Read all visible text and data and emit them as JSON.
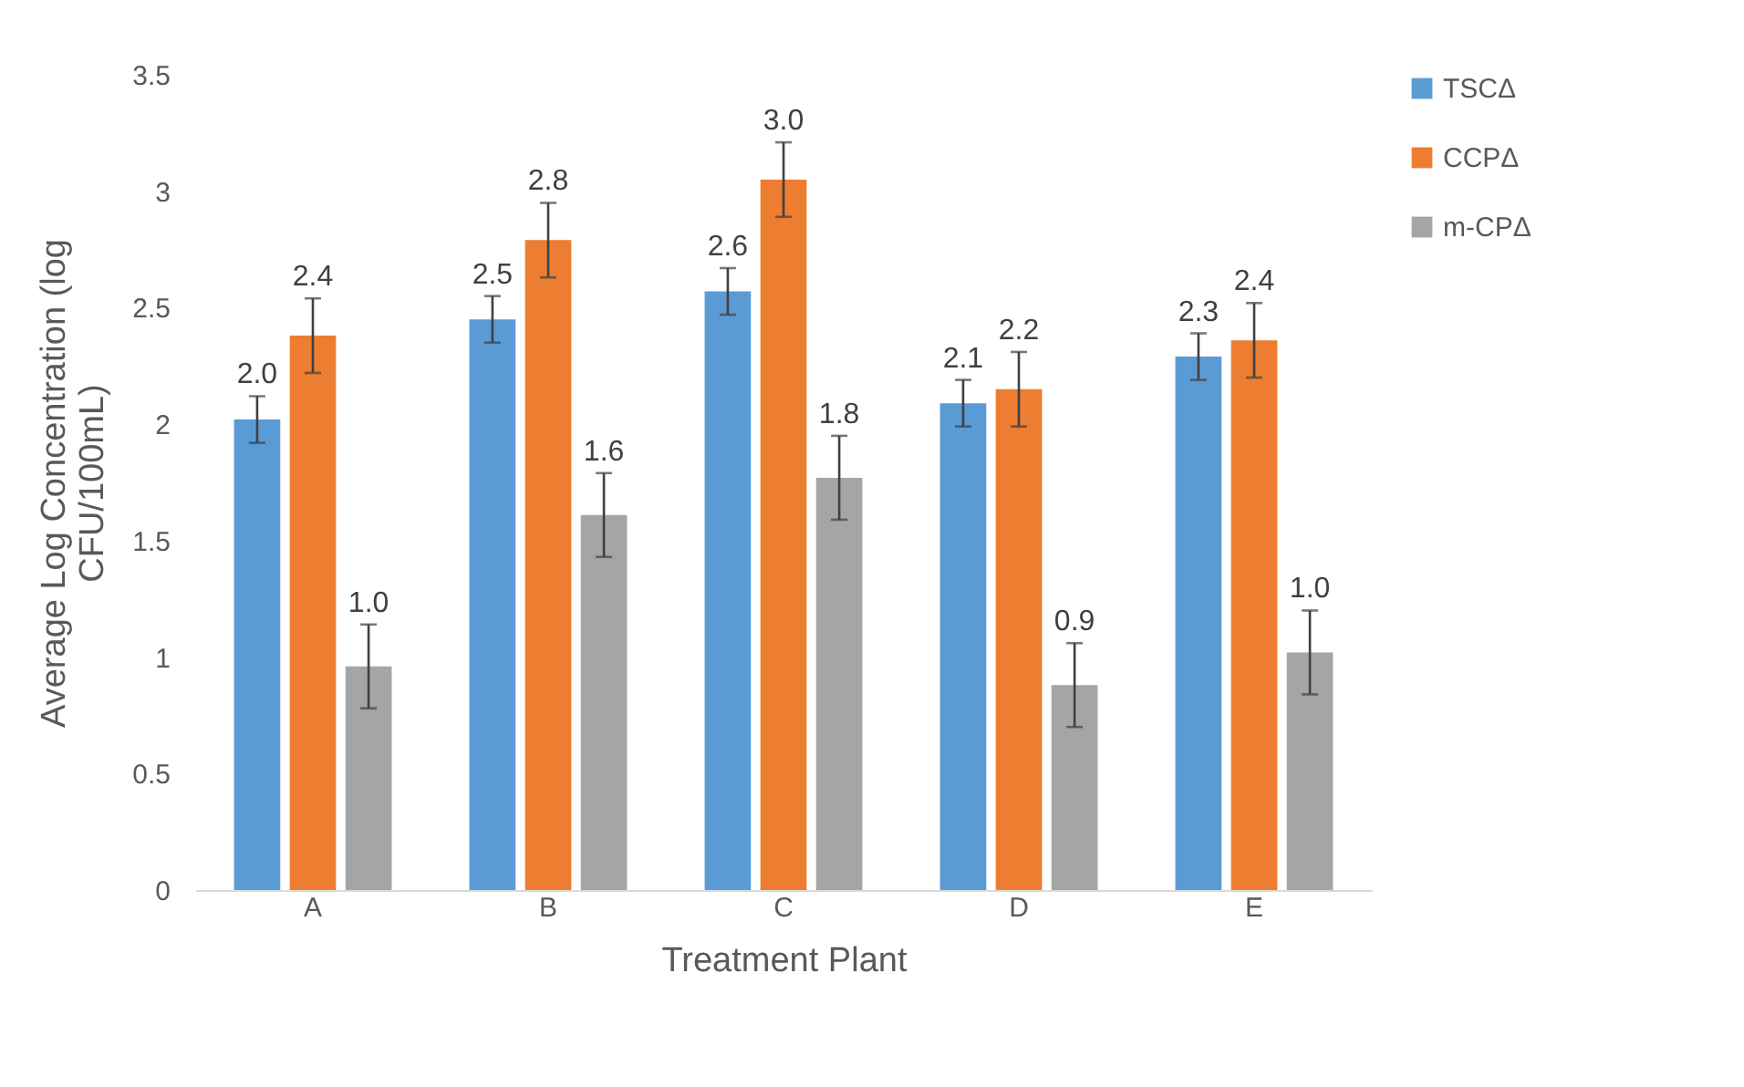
{
  "chart_data": {
    "type": "bar",
    "xlabel": "Treatment Plant",
    "ylabel": "Average Log Concentration (log CFU/100mL)",
    "categories": [
      "A",
      "B",
      "C",
      "D",
      "E"
    ],
    "series": [
      {
        "name": "TSCΔ",
        "color": "#5b9bd5",
        "values": [
          2.02,
          2.45,
          2.57,
          2.09,
          2.29
        ],
        "errors": [
          0.1,
          0.1,
          0.1,
          0.1,
          0.1
        ],
        "value_labels": [
          "2.0",
          "2.5",
          "2.6",
          "2.1",
          "2.3"
        ]
      },
      {
        "name": "CCPΔ",
        "color": "#ed7d31",
        "values": [
          2.38,
          2.79,
          3.05,
          2.15,
          2.36
        ],
        "errors": [
          0.16,
          0.16,
          0.16,
          0.16,
          0.16
        ],
        "value_labels": [
          "2.4",
          "2.8",
          "3.0",
          "2.2",
          "2.4"
        ]
      },
      {
        "name": "m-CPΔ",
        "color": "#a5a5a5",
        "values": [
          0.96,
          1.61,
          1.77,
          0.88,
          1.02
        ],
        "errors": [
          0.18,
          0.18,
          0.18,
          0.18,
          0.18
        ],
        "value_labels": [
          "1.0",
          "1.6",
          "1.8",
          "0.9",
          "1.0"
        ]
      }
    ],
    "ylim": [
      0,
      3.5
    ],
    "yticks": [
      0,
      0.5,
      1,
      1.5,
      2,
      2.5,
      3,
      3.5
    ],
    "grid": false,
    "legend": "right"
  }
}
